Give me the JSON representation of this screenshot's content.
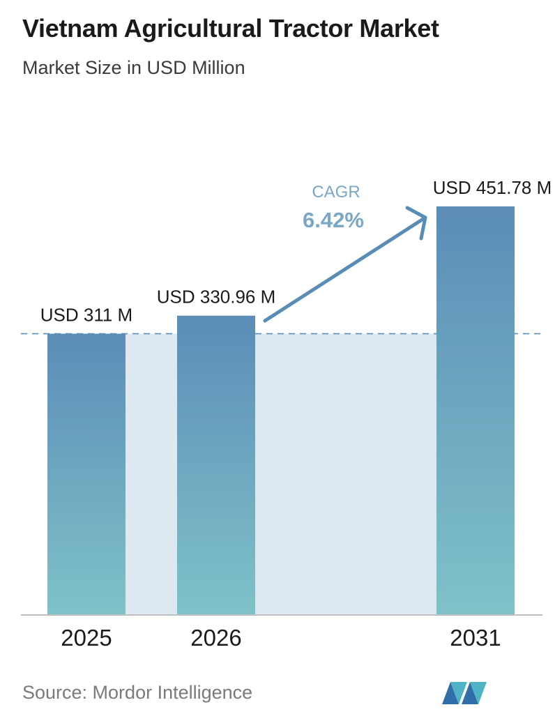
{
  "chart_data": {
    "type": "bar",
    "title": "Vietnam Agricultural Tractor Market",
    "subtitle": "Market Size in USD Million",
    "categories": [
      "2025",
      "2026",
      "2031"
    ],
    "values": [
      311,
      330.96,
      451.78
    ],
    "value_labels": [
      "USD 311 M",
      "USD 330.96 M",
      "USD 451.78 M"
    ],
    "ylim": [
      0,
      451.78
    ],
    "baseline_value": 311,
    "cagr": {
      "label": "CAGR",
      "value": "6.42%"
    },
    "grid": false,
    "legend": "none"
  },
  "colors": {
    "bar_top": "#5b8db8",
    "bar_bottom": "#7fc2c8",
    "band": "#dde8f1",
    "accent": "#5a8db6",
    "cagr_text": "#7aa7c6",
    "dashed_line": "#5a8db6",
    "axis": "#bfbfbf"
  },
  "source": "Source:  Mordor Intelligence",
  "logo_icon": "mordor-intelligence-logo-icon"
}
